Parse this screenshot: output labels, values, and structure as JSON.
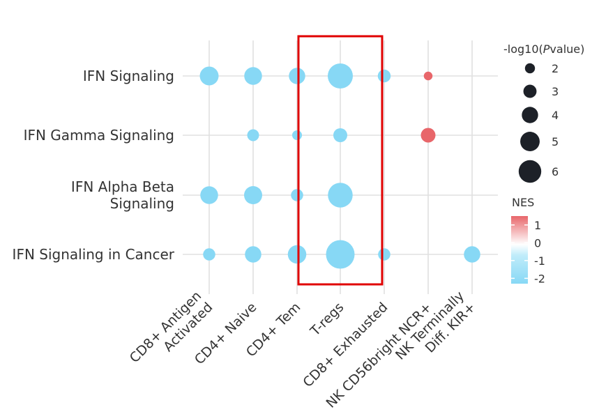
{
  "chart_data": {
    "type": "bubble",
    "x_categories": [
      [
        "CD8+ Antigen",
        "Activated"
      ],
      [
        "CD4+ Naive"
      ],
      [
        "CD4+ Tem"
      ],
      [
        "T-regs"
      ],
      [
        "CD8+ Exhausted"
      ],
      [
        "NK CD56bright NCR+"
      ],
      [
        "NK Terminally",
        "Diff. KIR+"
      ]
    ],
    "y_categories": [
      [
        "IFN Signaling"
      ],
      [
        "IFN Gamma Signaling"
      ],
      [
        "IFN Alpha Beta",
        "Signaling"
      ],
      [
        "IFN Signaling in Cancer"
      ]
    ],
    "points": [
      {
        "x": 0,
        "y": 0,
        "size": 4.2,
        "nes": -2.0
      },
      {
        "x": 1,
        "y": 0,
        "size": 3.9,
        "nes": -2.0
      },
      {
        "x": 2,
        "y": 0,
        "size": 3.5,
        "nes": -2.0
      },
      {
        "x": 3,
        "y": 0,
        "size": 6.0,
        "nes": -2.0
      },
      {
        "x": 4,
        "y": 0,
        "size": 2.5,
        "nes": -2.0
      },
      {
        "x": 5,
        "y": 0,
        "size": 1.3,
        "nes": 1.3
      },
      {
        "x": 1,
        "y": 1,
        "size": 2.2,
        "nes": -2.0
      },
      {
        "x": 2,
        "y": 1,
        "size": 1.6,
        "nes": -2.0
      },
      {
        "x": 3,
        "y": 1,
        "size": 2.8,
        "nes": -2.0
      },
      {
        "x": 5,
        "y": 1,
        "size": 3.0,
        "nes": 1.3
      },
      {
        "x": 0,
        "y": 2,
        "size": 3.9,
        "nes": -2.0
      },
      {
        "x": 1,
        "y": 2,
        "size": 4.0,
        "nes": -2.0
      },
      {
        "x": 2,
        "y": 2,
        "size": 2.3,
        "nes": -2.0
      },
      {
        "x": 3,
        "y": 2,
        "size": 5.9,
        "nes": -2.0
      },
      {
        "x": 0,
        "y": 3,
        "size": 2.3,
        "nes": -2.0
      },
      {
        "x": 1,
        "y": 3,
        "size": 3.5,
        "nes": -2.0
      },
      {
        "x": 2,
        "y": 3,
        "size": 4.1,
        "nes": -2.0
      },
      {
        "x": 3,
        "y": 3,
        "size": 7.0,
        "nes": -2.0
      },
      {
        "x": 4,
        "y": 3,
        "size": 2.3,
        "nes": -2.0
      },
      {
        "x": 6,
        "y": 3,
        "size": 3.5,
        "nes": -2.0
      }
    ],
    "highlight_category": "T-regs",
    "size_legend": {
      "title_prefix": "-log10(",
      "title_italic": "P",
      "title_suffix": "value)",
      "values": [
        2,
        3,
        4,
        5,
        6
      ]
    },
    "color_legend": {
      "title": "NES",
      "ticks": [
        1,
        0,
        -1,
        -2
      ],
      "range": [
        -2.3,
        1.5
      ]
    },
    "colors": {
      "negative": "#87d8f5",
      "positive": "#e8666a",
      "neutral": "#ffffff",
      "highlight_box": "#e00000",
      "legend_dot": "#1d2128"
    },
    "grid": true
  }
}
